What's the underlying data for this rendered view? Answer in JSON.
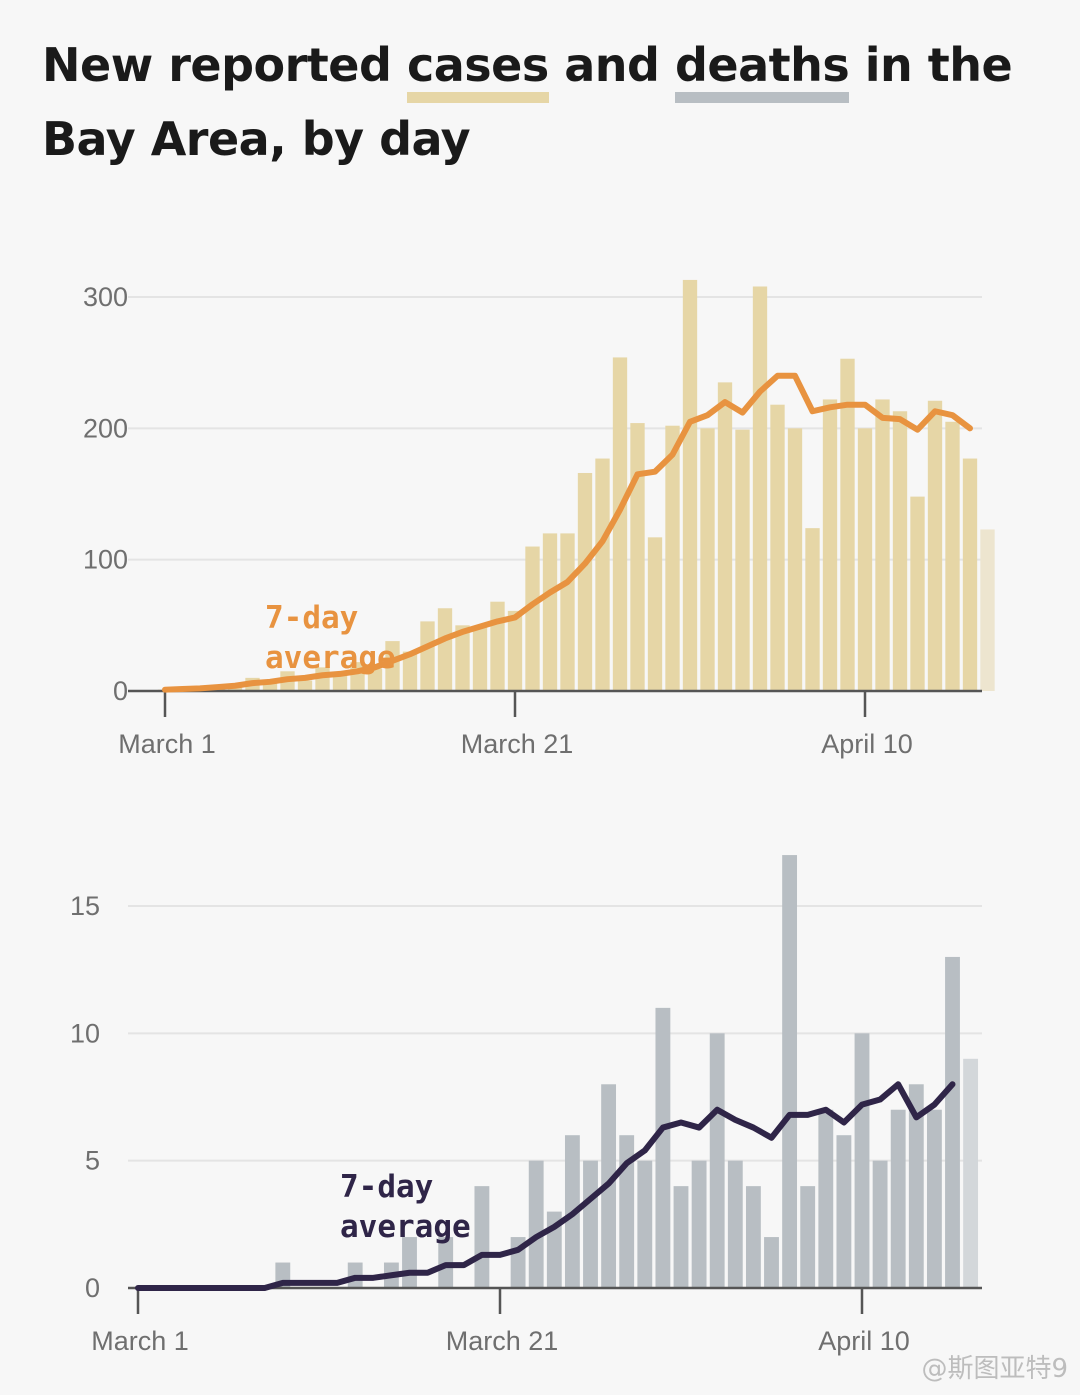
{
  "title": {
    "part1": "New reported ",
    "cases_word": "cases",
    "part2": " and ",
    "deaths_word": "deaths",
    "part3": " in the Bay Area, by day"
  },
  "colors": {
    "cases_bar": "#e6d6a6",
    "cases_bar_latest": "#ede5cf",
    "cases_line": "#e89340",
    "deaths_bar": "#b8bec3",
    "deaths_bar_latest": "#d3d7da",
    "deaths_line": "#2f2548",
    "grid": "#e4e4e4",
    "axis": "#555555"
  },
  "watermark": "@斯图亚特9",
  "chart_data": [
    {
      "type": "bar",
      "name": "cases",
      "x_start": "2020-03-01",
      "ylim": [
        0,
        300
      ],
      "yticks": [
        0,
        100,
        200,
        300
      ],
      "xticks": [
        {
          "label": "March 1",
          "day": 0
        },
        {
          "label": "March 21",
          "day": 20
        },
        {
          "label": "April 10",
          "day": 40
        }
      ],
      "values": [
        1,
        1,
        2,
        3,
        4,
        10,
        6,
        15,
        8,
        18,
        12,
        22,
        17,
        38,
        30,
        53,
        63,
        50,
        49,
        68,
        61,
        110,
        120,
        120,
        166,
        177,
        254,
        204,
        117,
        202,
        313,
        200,
        235,
        199,
        308,
        218,
        200,
        124,
        222,
        253,
        200,
        222,
        213,
        148,
        221,
        205,
        177,
        123
      ],
      "avg_7day": [
        1,
        1.5,
        2,
        3,
        4,
        6,
        7,
        9,
        10,
        12,
        13,
        15,
        18,
        23,
        28,
        34,
        40,
        45,
        49,
        53,
        56,
        66,
        75,
        83,
        97,
        114,
        138,
        165,
        167,
        180,
        205,
        210,
        220,
        212,
        228,
        240,
        240,
        213,
        216,
        218,
        218,
        208,
        207,
        199,
        213,
        210,
        200
      ],
      "annotation": "7-day\naverage"
    },
    {
      "type": "bar",
      "name": "deaths",
      "x_start": "2020-03-01",
      "ylim": [
        0,
        15
      ],
      "yticks": [
        0,
        5,
        10,
        15
      ],
      "xticks": [
        {
          "label": "March 1",
          "day": 0
        },
        {
          "label": "March 21",
          "day": 20
        },
        {
          "label": "April 10",
          "day": 40
        }
      ],
      "values": [
        0,
        0,
        0,
        0,
        0,
        0,
        0,
        0,
        1,
        0,
        0,
        0,
        1,
        0,
        1,
        2,
        0,
        2,
        0,
        4,
        0,
        2,
        5,
        3,
        6,
        5,
        8,
        6,
        5,
        11,
        4,
        5,
        10,
        5,
        4,
        2,
        17,
        4,
        7,
        6,
        10,
        5,
        7,
        8,
        7,
        13,
        9
      ],
      "avg_7day": [
        0,
        0,
        0,
        0,
        0,
        0,
        0,
        0,
        0.2,
        0.2,
        0.2,
        0.2,
        0.4,
        0.4,
        0.5,
        0.6,
        0.6,
        0.9,
        0.9,
        1.3,
        1.3,
        1.5,
        2.0,
        2.4,
        2.9,
        3.5,
        4.1,
        4.9,
        5.4,
        6.3,
        6.5,
        6.3,
        7.0,
        6.6,
        6.3,
        5.9,
        6.8,
        6.8,
        7.0,
        6.5,
        7.2,
        7.4,
        8.0,
        6.7,
        7.2,
        8.0
      ],
      "annotation": "7-day\naverage"
    }
  ]
}
